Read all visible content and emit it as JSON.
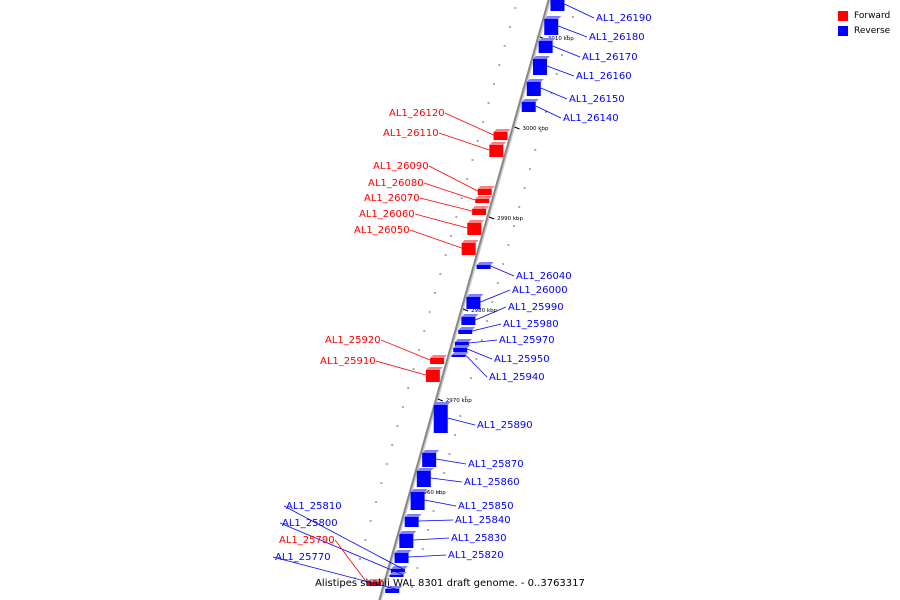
{
  "legend": [
    {
      "label": "Forward",
      "color": "#ff0000"
    },
    {
      "label": "Reverse",
      "color": "#0000ff"
    }
  ],
  "caption": "Alistipes shahii WAL 8301 draft genome. - 0..3763317",
  "colors": {
    "forward": "#ff0000",
    "reverse": "#0000ff",
    "backbone": "#888888"
  },
  "chart_data": {
    "type": "genome-map",
    "tick_labels": [
      "2960 kbp",
      "2970 kbp",
      "2980 kbp",
      "2990 kbp",
      "3000 kbp",
      "3010 kbp"
    ],
    "genes": [
      {
        "name": "AL1_26190",
        "strand": "reverse"
      },
      {
        "name": "AL1_26180",
        "strand": "reverse"
      },
      {
        "name": "AL1_26170",
        "strand": "reverse"
      },
      {
        "name": "AL1_26160",
        "strand": "reverse"
      },
      {
        "name": "AL1_26150",
        "strand": "reverse"
      },
      {
        "name": "AL1_26140",
        "strand": "reverse"
      },
      {
        "name": "AL1_26120",
        "strand": "forward"
      },
      {
        "name": "AL1_26110",
        "strand": "forward"
      },
      {
        "name": "AL1_26090",
        "strand": "forward"
      },
      {
        "name": "AL1_26080",
        "strand": "forward"
      },
      {
        "name": "AL1_26070",
        "strand": "forward"
      },
      {
        "name": "AL1_26060",
        "strand": "forward"
      },
      {
        "name": "AL1_26050",
        "strand": "forward"
      },
      {
        "name": "AL1_26040",
        "strand": "reverse"
      },
      {
        "name": "AL1_26000",
        "strand": "reverse"
      },
      {
        "name": "AL1_25990",
        "strand": "reverse"
      },
      {
        "name": "AL1_25980",
        "strand": "reverse"
      },
      {
        "name": "AL1_25970",
        "strand": "reverse"
      },
      {
        "name": "AL1_25950",
        "strand": "reverse"
      },
      {
        "name": "AL1_25940",
        "strand": "reverse"
      },
      {
        "name": "AL1_25920",
        "strand": "forward"
      },
      {
        "name": "AL1_25910",
        "strand": "forward"
      },
      {
        "name": "AL1_25890",
        "strand": "reverse"
      },
      {
        "name": "AL1_25870",
        "strand": "reverse"
      },
      {
        "name": "AL1_25860",
        "strand": "reverse"
      },
      {
        "name": "AL1_25850",
        "strand": "reverse"
      },
      {
        "name": "AL1_25840",
        "strand": "reverse"
      },
      {
        "name": "AL1_25830",
        "strand": "reverse"
      },
      {
        "name": "AL1_25820",
        "strand": "reverse"
      },
      {
        "name": "AL1_25810",
        "strand": "reverse"
      },
      {
        "name": "AL1_25800",
        "strand": "reverse"
      },
      {
        "name": "AL1_25790",
        "strand": "forward"
      },
      {
        "name": "AL1_25770",
        "strand": "reverse"
      }
    ]
  }
}
